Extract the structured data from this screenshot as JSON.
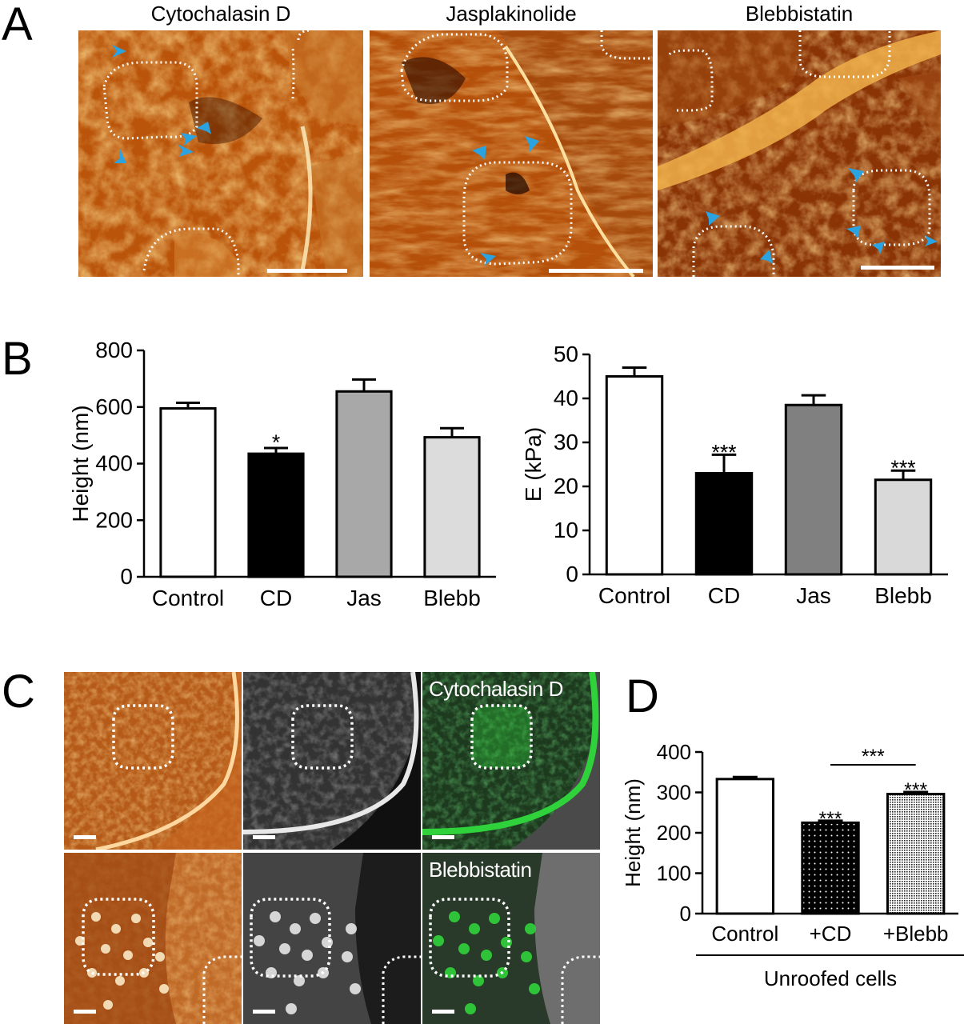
{
  "panelA": {
    "letter": "A",
    "titles": [
      "Cytochalasin D",
      "Jasplakinolide",
      "Blebbistatin"
    ]
  },
  "panelB": {
    "letter": "B"
  },
  "panelC": {
    "letter": "C",
    "labels": [
      "Cytochalasin D",
      "Blebbistatin"
    ]
  },
  "panelD": {
    "letter": "D"
  },
  "colors": {
    "afm_orange": "#c25a0c",
    "afm_dark": "#5a1e02",
    "arrow_blue": "#2aa3e0",
    "gfp_green": "#2fd23a"
  },
  "chart_data": [
    {
      "type": "bar",
      "id": "B-height",
      "categories": [
        "Control",
        "CD",
        "Jas",
        "Blebb"
      ],
      "values": [
        595,
        435,
        655,
        493
      ],
      "errors": [
        20,
        20,
        42,
        32
      ],
      "fills": [
        "#ffffff",
        "#000000",
        "#a8a8a8",
        "#dcdcdc"
      ],
      "significance": [
        "",
        "*",
        "",
        ""
      ],
      "ylabel": "Height (nm)",
      "yticks": [
        0,
        200,
        400,
        600,
        800
      ],
      "ylim": [
        0,
        800
      ]
    },
    {
      "type": "bar",
      "id": "B-modulus",
      "categories": [
        "Control",
        "CD",
        "Jas",
        "Blebb"
      ],
      "values": [
        45,
        23,
        38.5,
        21.5
      ],
      "errors": [
        2,
        4.2,
        2.2,
        2.1
      ],
      "fills": [
        "#ffffff",
        "#000000",
        "#808080",
        "#d9d9d9"
      ],
      "significance": [
        "",
        "***",
        "",
        "***"
      ],
      "ylabel": "E (kPa)",
      "yticks": [
        0,
        10,
        20,
        30,
        40,
        50
      ],
      "ylim": [
        0,
        50
      ]
    },
    {
      "type": "bar",
      "id": "D-height",
      "categories": [
        "Control",
        "+CD",
        "+Blebb"
      ],
      "values": [
        333,
        225,
        296
      ],
      "errors": [
        5,
        5,
        5
      ],
      "fills": [
        "#ffffff",
        "dots",
        "dense"
      ],
      "significance": [
        "",
        "***",
        "***"
      ],
      "bracket": {
        "from": 1,
        "to": 2,
        "label": "***"
      },
      "ylabel": "Height (nm)",
      "yticks": [
        0,
        100,
        200,
        300,
        400
      ],
      "ylim": [
        0,
        400
      ],
      "group_label": "Unroofed cells"
    }
  ]
}
